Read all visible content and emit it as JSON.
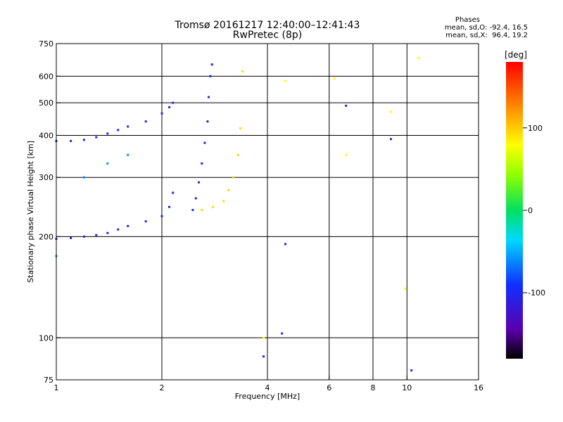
{
  "header": {
    "title": "Tromsø 20161217 12:40:00–12:41:43",
    "subtitle": "RwPretec (8p)"
  },
  "stats": {
    "heading": "Phases",
    "line_o": "mean, sd,O: -92.4, 16.5",
    "line_x": "mean, sd,X:  96.4, 19.2"
  },
  "colorbar": {
    "label": "[deg]",
    "ticks": [
      {
        "label": "100",
        "value": 100
      },
      {
        "label": "0",
        "value": 0
      },
      {
        "label": "-100",
        "value": -100
      }
    ],
    "range": [
      -180,
      180
    ]
  },
  "chart_data": {
    "type": "scatter",
    "title": "Tromsø 20161217 12:40:00–12:41:43",
    "subtitle": "RwPretec (8p)",
    "xlabel": "Frequency [MHz]",
    "ylabel": "Stationary phase Virtual Height [km]",
    "x_scale": "log",
    "y_scale": "log",
    "xlim": [
      1,
      16
    ],
    "ylim": [
      75,
      750
    ],
    "grid": true,
    "x_ticks": [
      1,
      2,
      4,
      6,
      8,
      10,
      16
    ],
    "x_tick_labels": [
      "1",
      "2",
      "4",
      "6",
      "8",
      "10",
      "16"
    ],
    "y_ticks": [
      75,
      100,
      200,
      300,
      400,
      500,
      600,
      750
    ],
    "y_tick_labels": [
      "75",
      "100",
      "200",
      "300",
      "400",
      "500",
      "600",
      "750"
    ],
    "color_variable": "phase [deg]",
    "traces": [
      {
        "name": "",
        "mode": "O",
        "phase": -100,
        "x": [
          1.0,
          1.1,
          1.2,
          1.3,
          1.4,
          1.5,
          1.6,
          1.8,
          2.0,
          2.1,
          2.15
        ],
        "y": [
          197,
          198,
          200,
          202,
          205,
          210,
          215,
          222,
          230,
          245,
          270
        ]
      },
      {
        "name": "",
        "mode": "O",
        "phase": -100,
        "x": [
          1.0,
          1.1,
          1.2,
          1.3,
          1.4,
          1.5,
          1.6,
          1.8,
          2.0,
          2.1,
          2.15
        ],
        "y": [
          385,
          385,
          388,
          395,
          405,
          415,
          425,
          440,
          465,
          485,
          500
        ]
      },
      {
        "name": "",
        "mode": "O",
        "phase": -105,
        "x": [
          2.45,
          2.5,
          2.55,
          2.6,
          2.65,
          2.7,
          2.72,
          2.75,
          2.78
        ],
        "y": [
          240,
          260,
          290,
          330,
          380,
          440,
          520,
          600,
          650
        ]
      },
      {
        "name": "",
        "mode": "X",
        "phase": 95,
        "x": [
          2.6,
          2.8,
          3.0,
          3.1,
          3.2,
          3.3,
          3.35,
          3.4
        ],
        "y": [
          240,
          245,
          255,
          275,
          300,
          350,
          420,
          620
        ]
      },
      {
        "name": "",
        "mode": "sparse",
        "phase": -60,
        "x": [
          1.0,
          1.2,
          1.4,
          1.6
        ],
        "y": [
          175,
          300,
          330,
          350
        ]
      },
      {
        "name": "",
        "mode": "sparse",
        "phase": 80,
        "x": [
          3.9,
          4.5,
          6.2,
          6.7,
          9.0,
          9.9,
          10.8
        ],
        "y": [
          100,
          580,
          590,
          350,
          470,
          140,
          680
        ]
      },
      {
        "name": "",
        "mode": "sparse",
        "phase": -100,
        "x": [
          3.9,
          4.4,
          4.5,
          6.7,
          9.0,
          10.3
        ],
        "y": [
          88,
          103,
          190,
          490,
          390,
          80
        ]
      }
    ]
  }
}
